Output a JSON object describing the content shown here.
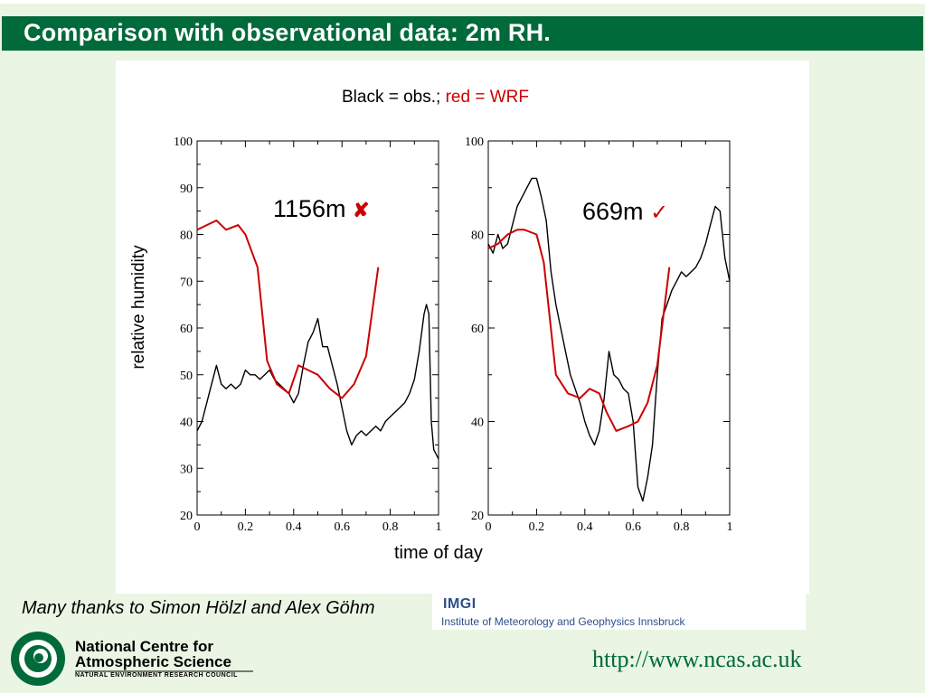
{
  "slide": {
    "title": "Comparison with observational data: 2m RH.",
    "legend_black": "Black = obs.; ",
    "legend_red": "red = WRF",
    "ylabel": "relative humidity",
    "xlabel": "time of day",
    "thanks": "Many thanks to Simon Hölzl and Alex Göhm",
    "url": "http://www.ncas.ac.uk",
    "imgi": {
      "abbr": "IMGI",
      "name": "Institute of Meteorology and Geophysics Innsbruck"
    },
    "ncas": {
      "line1": "National Centre for",
      "line2": "Atmospheric Science",
      "line3": "NATURAL ENVIRONMENT RESEARCH COUNCIL"
    },
    "colors": {
      "header": "#006a3a",
      "wrf": "#cc0000",
      "obs": "#000000",
      "background": "#eaf5e4"
    }
  },
  "chart_data": [
    {
      "type": "line",
      "annotation": "1156m",
      "annotation_mark": "cross-icon",
      "xlim": [
        0,
        1
      ],
      "ylim": [
        20,
        100
      ],
      "x_ticks": [
        "0",
        "0.2",
        "0.4",
        "0.6",
        "0.8",
        "1"
      ],
      "y_ticks": [
        "20",
        "30",
        "40",
        "50",
        "60",
        "70",
        "80",
        "90",
        "100"
      ],
      "series": [
        {
          "color": "#000000",
          "x": [
            0,
            0.02,
            0.04,
            0.06,
            0.08,
            0.1,
            0.12,
            0.14,
            0.16,
            0.18,
            0.2,
            0.22,
            0.24,
            0.26,
            0.28,
            0.3,
            0.32,
            0.34,
            0.36,
            0.38,
            0.4,
            0.42,
            0.44,
            0.46,
            0.48,
            0.5,
            0.52,
            0.54,
            0.56,
            0.58,
            0.6,
            0.62,
            0.64,
            0.66,
            0.68,
            0.7,
            0.72,
            0.74,
            0.76,
            0.78,
            0.8,
            0.82,
            0.84,
            0.86,
            0.88,
            0.9,
            0.92,
            0.94,
            0.95,
            0.96,
            0.97,
            0.98,
            1.0
          ],
          "y": [
            38,
            40,
            44,
            48,
            52,
            48,
            47,
            48,
            47,
            48,
            51,
            50,
            50,
            49,
            50,
            51,
            49,
            48,
            47,
            46,
            44,
            46,
            52,
            57,
            59,
            62,
            56,
            56,
            52,
            48,
            43,
            38,
            35,
            37,
            38,
            37,
            38,
            39,
            38,
            40,
            41,
            42,
            43,
            44,
            46,
            49,
            55,
            63,
            65,
            63,
            40,
            34,
            32
          ]
        },
        {
          "color": "#cc0000",
          "x": [
            0,
            0.04,
            0.08,
            0.12,
            0.17,
            0.2,
            0.25,
            0.29,
            0.33,
            0.38,
            0.42,
            0.46,
            0.5,
            0.55,
            0.6,
            0.65,
            0.7,
            0.75
          ],
          "y": [
            81,
            82,
            83,
            81,
            82,
            80,
            73,
            53,
            48,
            46,
            52,
            51,
            50,
            47,
            45,
            48,
            54,
            73
          ]
        }
      ]
    },
    {
      "type": "line",
      "annotation": "669m",
      "annotation_mark": "check-icon",
      "xlim": [
        0,
        1
      ],
      "ylim": [
        20,
        100
      ],
      "x_ticks": [
        "0",
        "0.2",
        "0.4",
        "0.6",
        "0.8",
        "1"
      ],
      "y_ticks": [
        "20",
        "40",
        "60",
        "80",
        "100"
      ],
      "series": [
        {
          "color": "#000000",
          "x": [
            0,
            0.02,
            0.04,
            0.06,
            0.08,
            0.1,
            0.12,
            0.14,
            0.16,
            0.18,
            0.2,
            0.22,
            0.24,
            0.26,
            0.28,
            0.3,
            0.32,
            0.34,
            0.36,
            0.38,
            0.4,
            0.42,
            0.44,
            0.46,
            0.48,
            0.5,
            0.52,
            0.54,
            0.56,
            0.58,
            0.6,
            0.62,
            0.64,
            0.66,
            0.68,
            0.7,
            0.72,
            0.74,
            0.76,
            0.78,
            0.8,
            0.82,
            0.84,
            0.86,
            0.88,
            0.9,
            0.92,
            0.94,
            0.96,
            0.98,
            1.0
          ],
          "y": [
            78,
            76,
            80,
            77,
            78,
            82,
            86,
            88,
            90,
            92,
            92,
            88,
            83,
            72,
            65,
            60,
            55,
            50,
            47,
            44,
            40,
            37,
            35,
            38,
            45,
            55,
            50,
            49,
            47,
            46,
            40,
            26,
            23,
            28,
            35,
            50,
            62,
            65,
            68,
            70,
            72,
            71,
            72,
            73,
            75,
            78,
            82,
            86,
            85,
            75,
            70
          ]
        },
        {
          "color": "#cc0000",
          "x": [
            0,
            0.04,
            0.08,
            0.12,
            0.15,
            0.2,
            0.23,
            0.28,
            0.33,
            0.38,
            0.42,
            0.46,
            0.49,
            0.53,
            0.58,
            0.62,
            0.66,
            0.7,
            0.75
          ],
          "y": [
            77,
            78,
            80,
            81,
            81,
            80,
            74,
            50,
            46,
            45,
            47,
            46,
            42,
            38,
            39,
            40,
            44,
            52,
            73
          ]
        }
      ]
    }
  ]
}
